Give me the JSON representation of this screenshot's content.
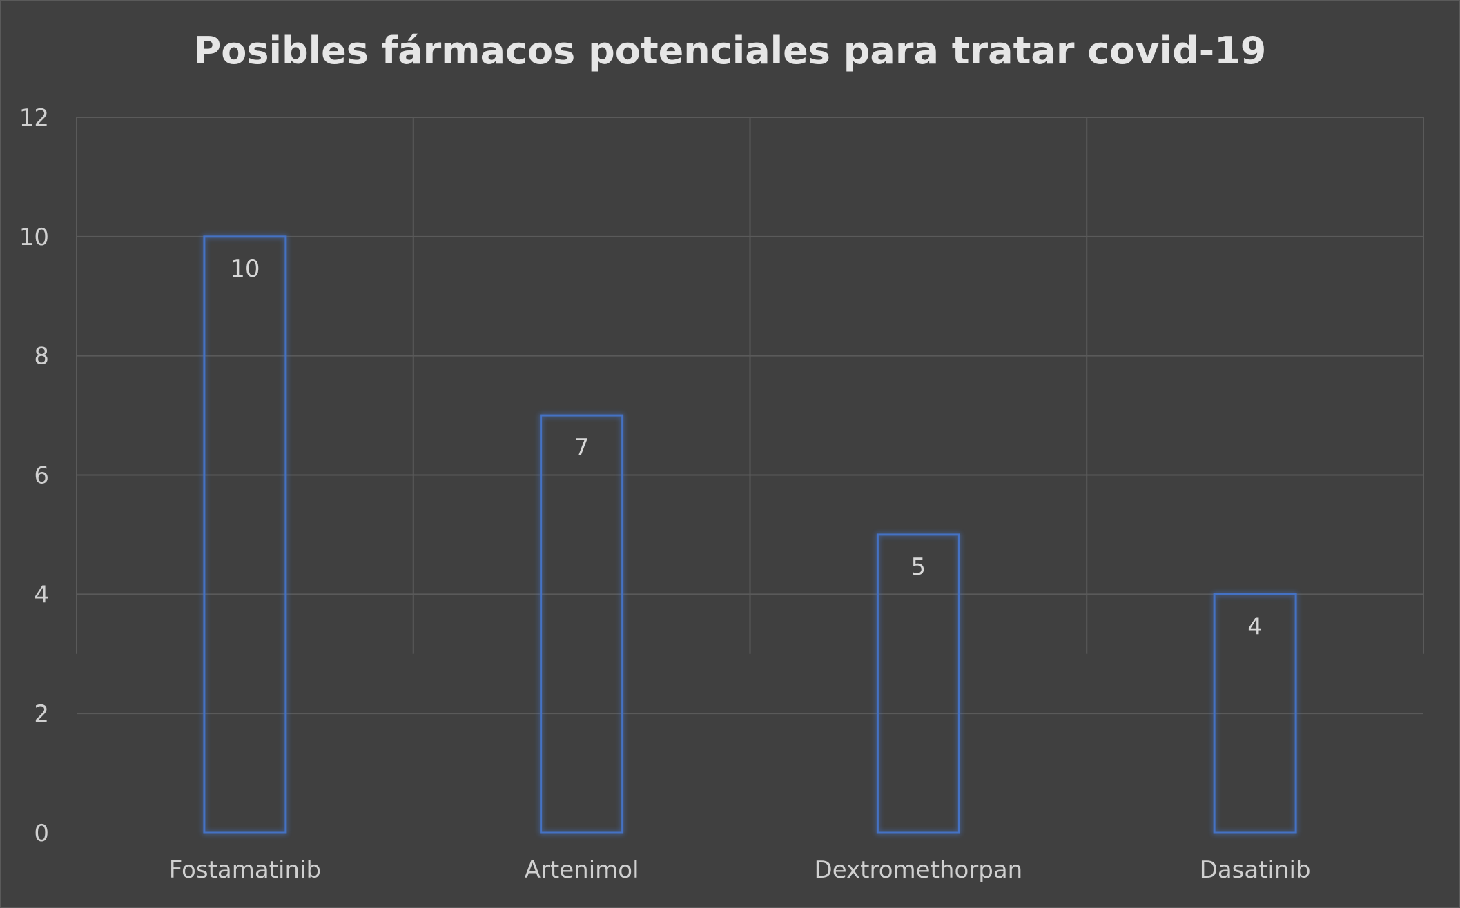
{
  "chart_data": {
    "type": "bar",
    "title": "Posibles fármacos potenciales para tratar covid-19",
    "categories": [
      "Fostamatinib",
      "Artenimol",
      "Dextromethorpan",
      "Dasatinib"
    ],
    "values": [
      10,
      7,
      5,
      4
    ],
    "ylim": [
      0,
      12
    ],
    "yticks": [
      0,
      2,
      4,
      6,
      8,
      10,
      12
    ],
    "xlabel": "",
    "ylabel": "",
    "grid": true,
    "legend": "none",
    "data_labels": true,
    "bar_style": "outline",
    "colors": {
      "background": "#404040",
      "bar_outline": "#4472C4",
      "grid": "#5a5a5a",
      "text": "#d0d0d0",
      "title": "#e6e6e6"
    }
  }
}
